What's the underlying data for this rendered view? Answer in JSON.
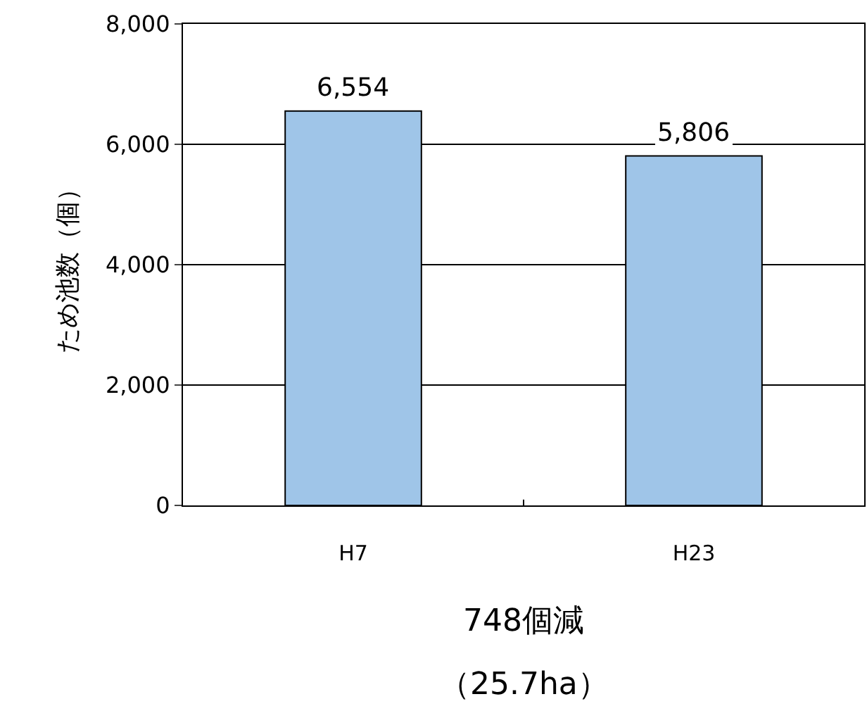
{
  "chart_data": {
    "type": "bar",
    "ylabel": "ため池数（個）",
    "categories": [
      "H7",
      "H23"
    ],
    "values": [
      6554,
      5806
    ],
    "color": "#9fc5e8",
    "value_labels": [
      "6,554",
      "5,806"
    ],
    "ylim": [
      0,
      8000
    ],
    "yticks": [
      {
        "value": 0,
        "label": "0"
      },
      {
        "value": 2000,
        "label": "2,000"
      },
      {
        "value": 4000,
        "label": "4,000"
      },
      {
        "value": 6000,
        "label": "6,000"
      },
      {
        "value": 8000,
        "label": "8,000"
      }
    ],
    "grid": "y",
    "annotations": [
      "748個減",
      "（25.7ha）"
    ]
  }
}
